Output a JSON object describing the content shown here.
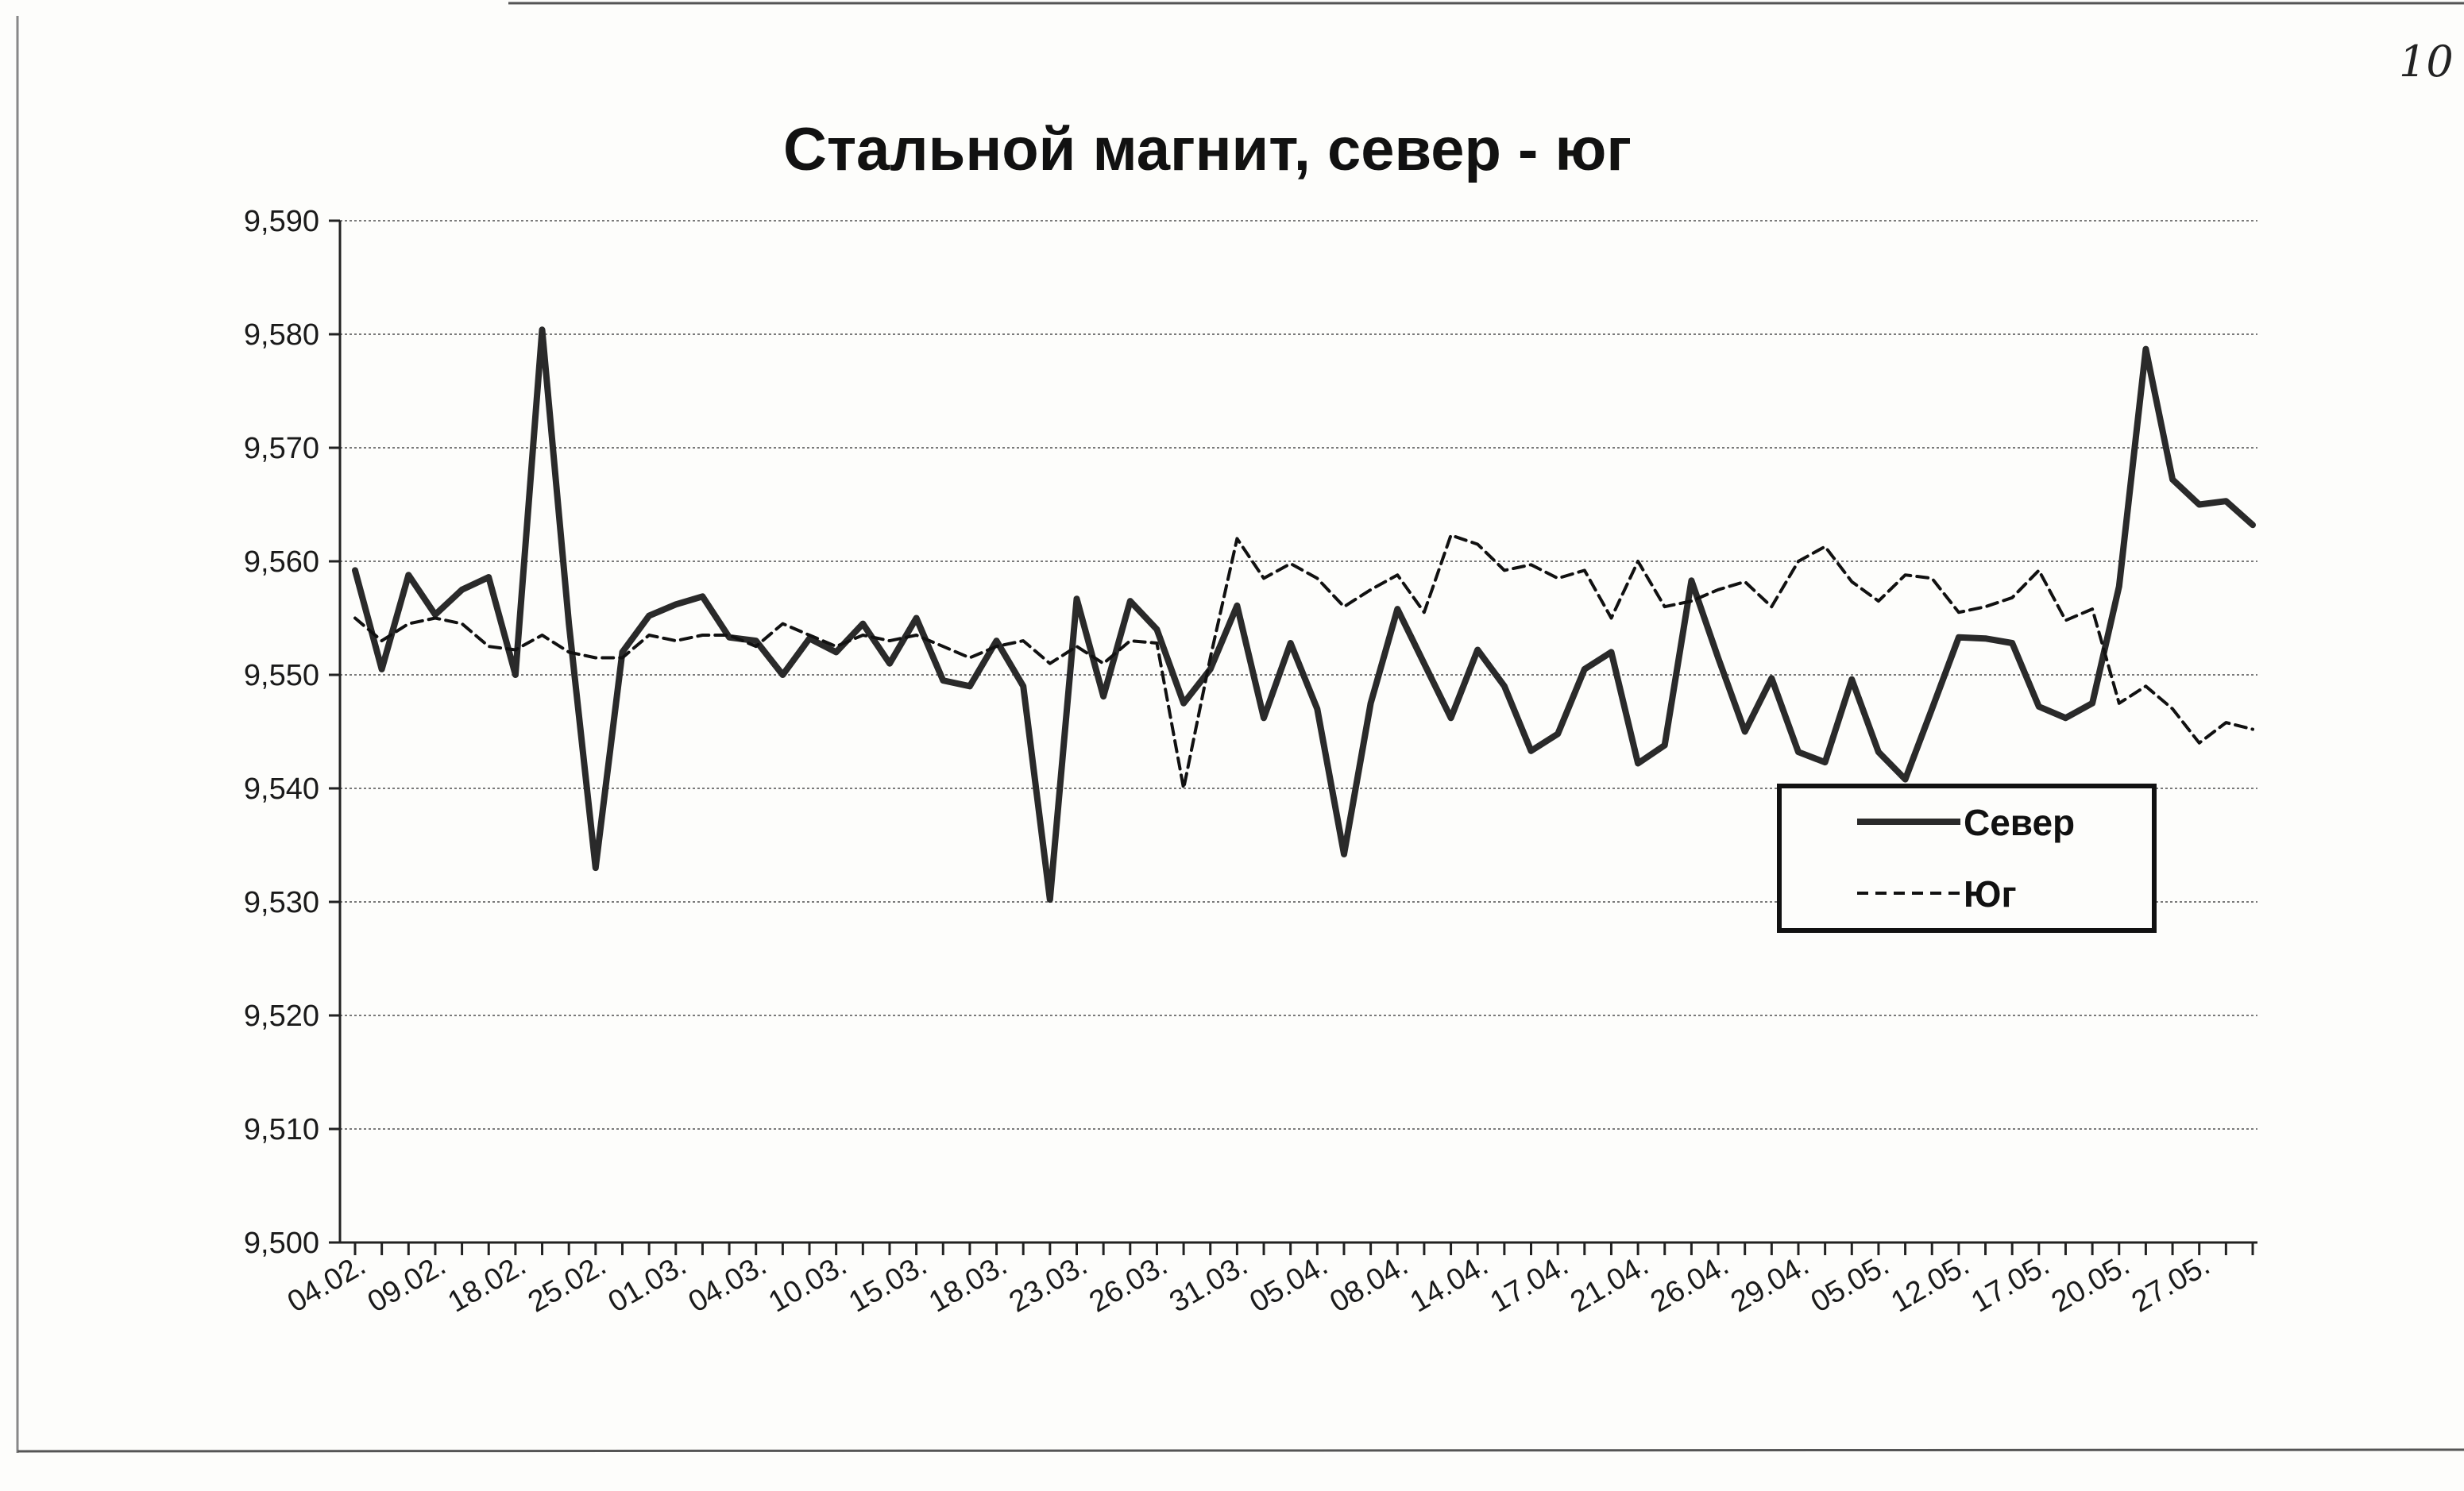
{
  "page_number": "10",
  "chart_data": {
    "type": "line",
    "title": "Стальной магнит, север - юг",
    "xlabel": "",
    "ylabel": "",
    "ylim": [
      9.5,
      9.59
    ],
    "y_ticks": [
      "9,500",
      "9,510",
      "9,520",
      "9,530",
      "9,540",
      "9,550",
      "9,560",
      "9,570",
      "9,580",
      "9,590"
    ],
    "x_tick_labels": [
      "04.02.",
      "09.02.",
      "18.02.",
      "25.02.",
      "01.03.",
      "04.03.",
      "10.03.",
      "15.03.",
      "18.03.",
      "23.03.",
      "26.03.",
      "31.03.",
      "05.04.",
      "08.04.",
      "14.04.",
      "17.04.",
      "21.04.",
      "26.04.",
      "29.04.",
      "05.05.",
      "12.05.",
      "17.05.",
      "20.05.",
      "27.05."
    ],
    "grid": true,
    "legend_position": "right",
    "series": [
      {
        "name": "Север",
        "color": "#2a2a2a",
        "style": "solid",
        "values": [
          9.5592,
          9.5505,
          9.5588,
          9.5553,
          9.5575,
          9.5586,
          9.55,
          9.5804,
          9.5545,
          9.533,
          9.552,
          9.5552,
          9.5562,
          9.5569,
          9.5533,
          9.553,
          9.55,
          9.5532,
          9.552,
          9.5545,
          9.551,
          9.555,
          9.5495,
          9.549,
          9.553,
          9.549,
          9.5302,
          9.5567,
          9.5481,
          9.5565,
          9.554,
          9.5475,
          9.5505,
          9.5561,
          9.5462,
          9.5528,
          9.547,
          9.5342,
          9.5475,
          9.5558,
          9.551,
          9.5462,
          9.5522,
          9.549,
          9.5433,
          9.5448,
          9.5505,
          9.552,
          9.5422,
          9.5438,
          9.5583,
          9.5515,
          9.545,
          9.5497,
          9.5432,
          9.5423,
          9.5496,
          9.5432,
          9.5408,
          9.547,
          9.5533,
          9.5532,
          9.5528,
          9.5472,
          9.5462,
          9.5475,
          9.5578,
          9.5787,
          9.5672,
          9.565,
          9.5653,
          9.5632
        ]
      },
      {
        "name": "Юг",
        "color": "#111111",
        "style": "dashed",
        "values": [
          9.555,
          9.553,
          9.5545,
          9.555,
          9.5545,
          9.5525,
          9.5522,
          9.5535,
          9.552,
          9.5515,
          9.5515,
          9.5535,
          9.553,
          9.5535,
          9.5535,
          9.5525,
          9.5545,
          9.5535,
          9.5525,
          9.5535,
          9.553,
          9.5535,
          9.5525,
          9.5515,
          9.5525,
          9.553,
          9.551,
          9.5525,
          9.551,
          9.553,
          9.5528,
          9.54,
          9.5515,
          9.562,
          9.5585,
          9.5598,
          9.5585,
          9.556,
          9.5575,
          9.5588,
          9.5555,
          9.5623,
          9.5615,
          9.5592,
          9.5597,
          9.5585,
          9.5592,
          9.555,
          9.56,
          9.556,
          9.5565,
          9.5575,
          9.5582,
          9.556,
          9.56,
          9.5613,
          9.5582,
          9.5565,
          9.5588,
          9.5585,
          9.5555,
          9.556,
          9.5568,
          9.5592,
          9.5548,
          9.5558,
          9.5475,
          9.549,
          9.547,
          9.544,
          9.5458,
          9.5452
        ]
      }
    ]
  }
}
